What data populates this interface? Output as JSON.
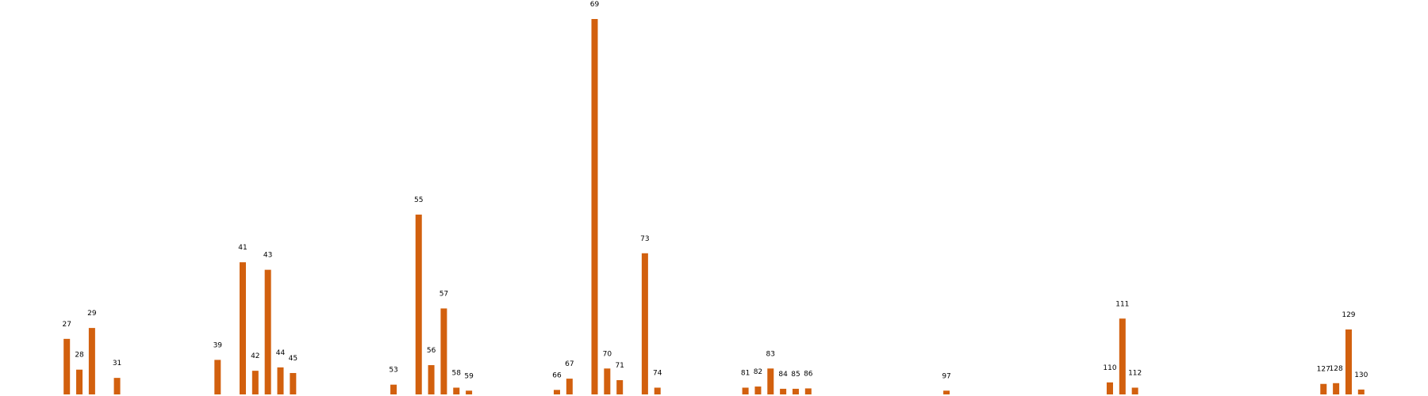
{
  "chart_data": {
    "type": "bar",
    "title": "",
    "xlabel": "",
    "ylabel": "",
    "grid": false,
    "axes_visible": false,
    "legend": "none",
    "bar_color": "#D2600E",
    "value_labels_shown": false,
    "x_domain": [
      22,
      135
    ],
    "ylim": [
      0,
      1
    ],
    "x": [
      "27",
      "28",
      "29",
      "31",
      "39",
      "41",
      "42",
      "43",
      "44",
      "45",
      "53",
      "55",
      "56",
      "57",
      "58",
      "59",
      "66",
      "67",
      "69",
      "70",
      "71",
      "73",
      "74",
      "81",
      "82",
      "83",
      "84",
      "85",
      "86",
      "97",
      "110",
      "111",
      "112",
      "127",
      "128",
      "129",
      "130"
    ],
    "values": [
      0.148,
      0.066,
      0.177,
      0.044,
      0.092,
      0.352,
      0.063,
      0.332,
      0.072,
      0.057,
      0.026,
      0.479,
      0.078,
      0.229,
      0.018,
      0.01,
      0.012,
      0.042,
      1.0,
      0.069,
      0.038,
      0.376,
      0.018,
      0.018,
      0.021,
      0.069,
      0.015,
      0.015,
      0.016,
      0.01,
      0.032,
      0.202,
      0.018,
      0.028,
      0.03,
      0.173,
      0.013
    ]
  }
}
